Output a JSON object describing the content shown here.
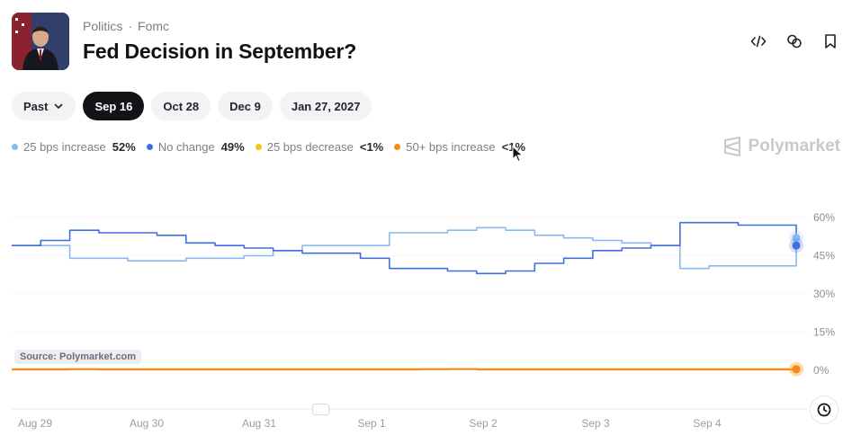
{
  "header": {
    "breadcrumb": {
      "category": "Politics",
      "subcategory": "Fomc",
      "separator": "·"
    },
    "title": "Fed Decision in September?"
  },
  "icons": {
    "embed": "code-icon",
    "link": "link-icon",
    "bookmark": "bookmark-icon",
    "history": "clock-icon",
    "brand": "polymarket-logo-icon"
  },
  "filters": {
    "past_label": "Past",
    "dates": [
      {
        "label": "Sep 16",
        "active": true
      },
      {
        "label": "Oct 28",
        "active": false
      },
      {
        "label": "Dec 9",
        "active": false
      },
      {
        "label": "Jan 27, 2027",
        "active": false
      }
    ]
  },
  "legend": [
    {
      "label": "25 bps increase",
      "value": "52%",
      "color": "#8ab9f0"
    },
    {
      "label": "No change",
      "value": "49%",
      "color": "#3f6fde"
    },
    {
      "label": "25 bps decrease",
      "value": "<1%",
      "color": "#f5c518"
    },
    {
      "label": "50+ bps increase",
      "value": "<1%",
      "color": "#f5891e"
    }
  ],
  "brand": "Polymarket",
  "source_label": "Source: Polymarket.com",
  "chart_data": {
    "type": "line",
    "x_tick_labels": [
      "Aug 29",
      "Aug 30",
      "Aug 31",
      "Sep 1",
      "Sep 2",
      "Sep 3",
      "Sep 4"
    ],
    "y_tick_labels": [
      "60%",
      "45%",
      "30%",
      "15%",
      "0%"
    ],
    "ylim": [
      0,
      60
    ],
    "x": [
      0,
      0.25,
      0.5,
      0.75,
      1,
      1.25,
      1.5,
      1.75,
      2,
      2.25,
      2.5,
      2.75,
      3,
      3.25,
      3.5,
      3.75,
      4,
      4.25,
      4.5,
      4.75,
      5,
      5.25,
      5.5,
      5.75,
      6,
      6.25,
      6.5,
      6.75
    ],
    "x_unit": "days after Aug 29",
    "series": [
      {
        "name": "25 bps increase",
        "color": "#8ab9f0",
        "values": [
          49,
          49,
          44,
          44,
          43,
          43,
          44,
          44,
          45,
          47,
          49,
          49,
          49,
          54,
          54,
          55,
          56,
          55,
          53,
          52,
          51,
          50,
          49,
          40,
          41,
          41,
          41,
          52
        ]
      },
      {
        "name": "No change",
        "color": "#3f6fde",
        "values": [
          49,
          51,
          55,
          54,
          54,
          53,
          50,
          49,
          48,
          47,
          46,
          46,
          44,
          40,
          40,
          39,
          38,
          39,
          42,
          44,
          47,
          48,
          49,
          58,
          58,
          57,
          57,
          49
        ]
      },
      {
        "name": "25 bps decrease",
        "color": "#f5c518",
        "values": [
          0.5,
          0.5,
          0.5,
          0.5,
          0.5,
          0.5,
          0.5,
          0.5,
          0.5,
          0.5,
          0.5,
          0.5,
          0.5,
          0.5,
          0.5,
          0.5,
          0.5,
          0.5,
          0.5,
          0.5,
          0.5,
          0.5,
          0.5,
          0.5,
          0.5,
          0.5,
          0.5,
          0.5
        ]
      },
      {
        "name": "50+ bps increase",
        "color": "#f5891e",
        "values": [
          0.3,
          0.3,
          0.4,
          0.3,
          0.3,
          0.3,
          0.3,
          0.3,
          0.3,
          0.3,
          0.3,
          0.3,
          0.3,
          0.3,
          0.4,
          0.5,
          0.3,
          0.3,
          0.3,
          0.3,
          0.3,
          0.3,
          0.3,
          0.3,
          0.3,
          0.3,
          0.3,
          0.4
        ]
      }
    ],
    "grid": true,
    "legend_placement": "top-left"
  }
}
